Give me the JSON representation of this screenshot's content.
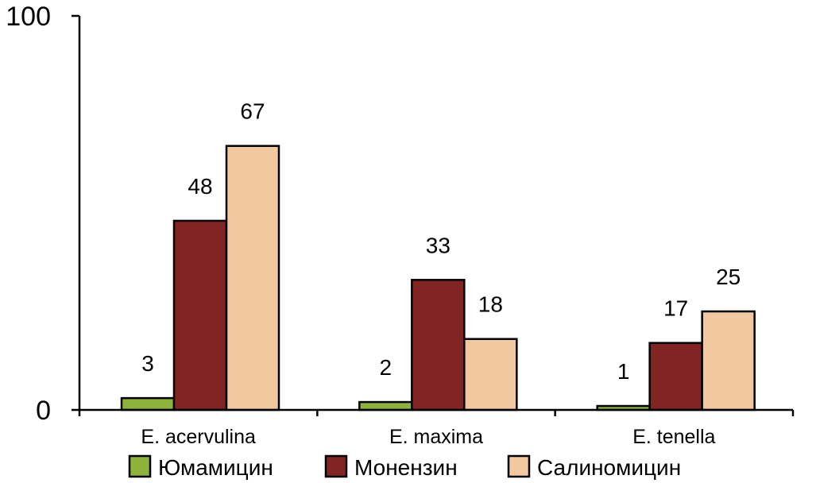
{
  "chart_data": {
    "type": "bar",
    "categories": [
      "E. acervulina",
      "E. maxima",
      "E. tenella"
    ],
    "series": [
      {
        "name": "Юмамицин",
        "values": [
          3,
          2,
          1
        ],
        "color": "#8DB33A"
      },
      {
        "name": "Монензин",
        "values": [
          48,
          33,
          17
        ],
        "color": "#822522"
      },
      {
        "name": "Салиномицин",
        "values": [
          67,
          18,
          25
        ],
        "color": "#F1C8A0"
      }
    ],
    "ylim": [
      0,
      100
    ],
    "yticks": [
      "0",
      "100"
    ],
    "title": "",
    "xlabel": "",
    "ylabel": "",
    "grid": false,
    "legend": "bottom"
  }
}
